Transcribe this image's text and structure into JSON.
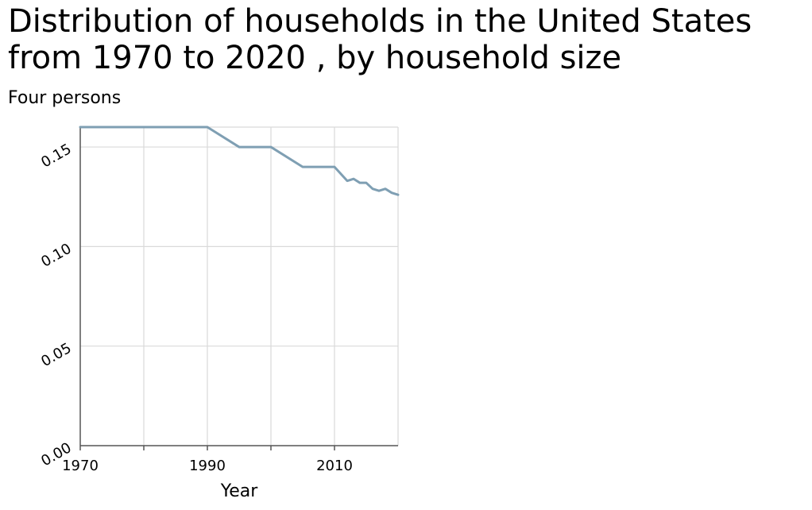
{
  "chart_data": {
    "type": "line",
    "title": "Distribution of households in the United States from 1970 to 2020 , by household size",
    "ylabel": "Four persons",
    "xlabel": "Year",
    "xlim": [
      1970,
      2020
    ],
    "ylim": [
      0,
      0.16
    ],
    "x_ticks": [
      1970,
      1990,
      2010
    ],
    "x_gridlines": [
      1980,
      1990,
      2000,
      2010
    ],
    "y_ticks": [
      0.0,
      0.05,
      0.1,
      0.15
    ],
    "y_tick_labels": [
      "0.00",
      "0.05",
      "0.10",
      "0.15"
    ],
    "grid": true,
    "line_color": "#7f9fb3",
    "series": [
      {
        "x": [
          1970,
          1980,
          1990,
          1995,
          2000,
          2005,
          2010,
          2012,
          2013,
          2014,
          2015,
          2016,
          2017,
          2018,
          2019,
          2020
        ],
        "values": [
          0.16,
          0.16,
          0.16,
          0.15,
          0.15,
          0.14,
          0.14,
          0.133,
          0.134,
          0.132,
          0.132,
          0.129,
          0.128,
          0.129,
          0.127,
          0.126
        ]
      }
    ]
  }
}
